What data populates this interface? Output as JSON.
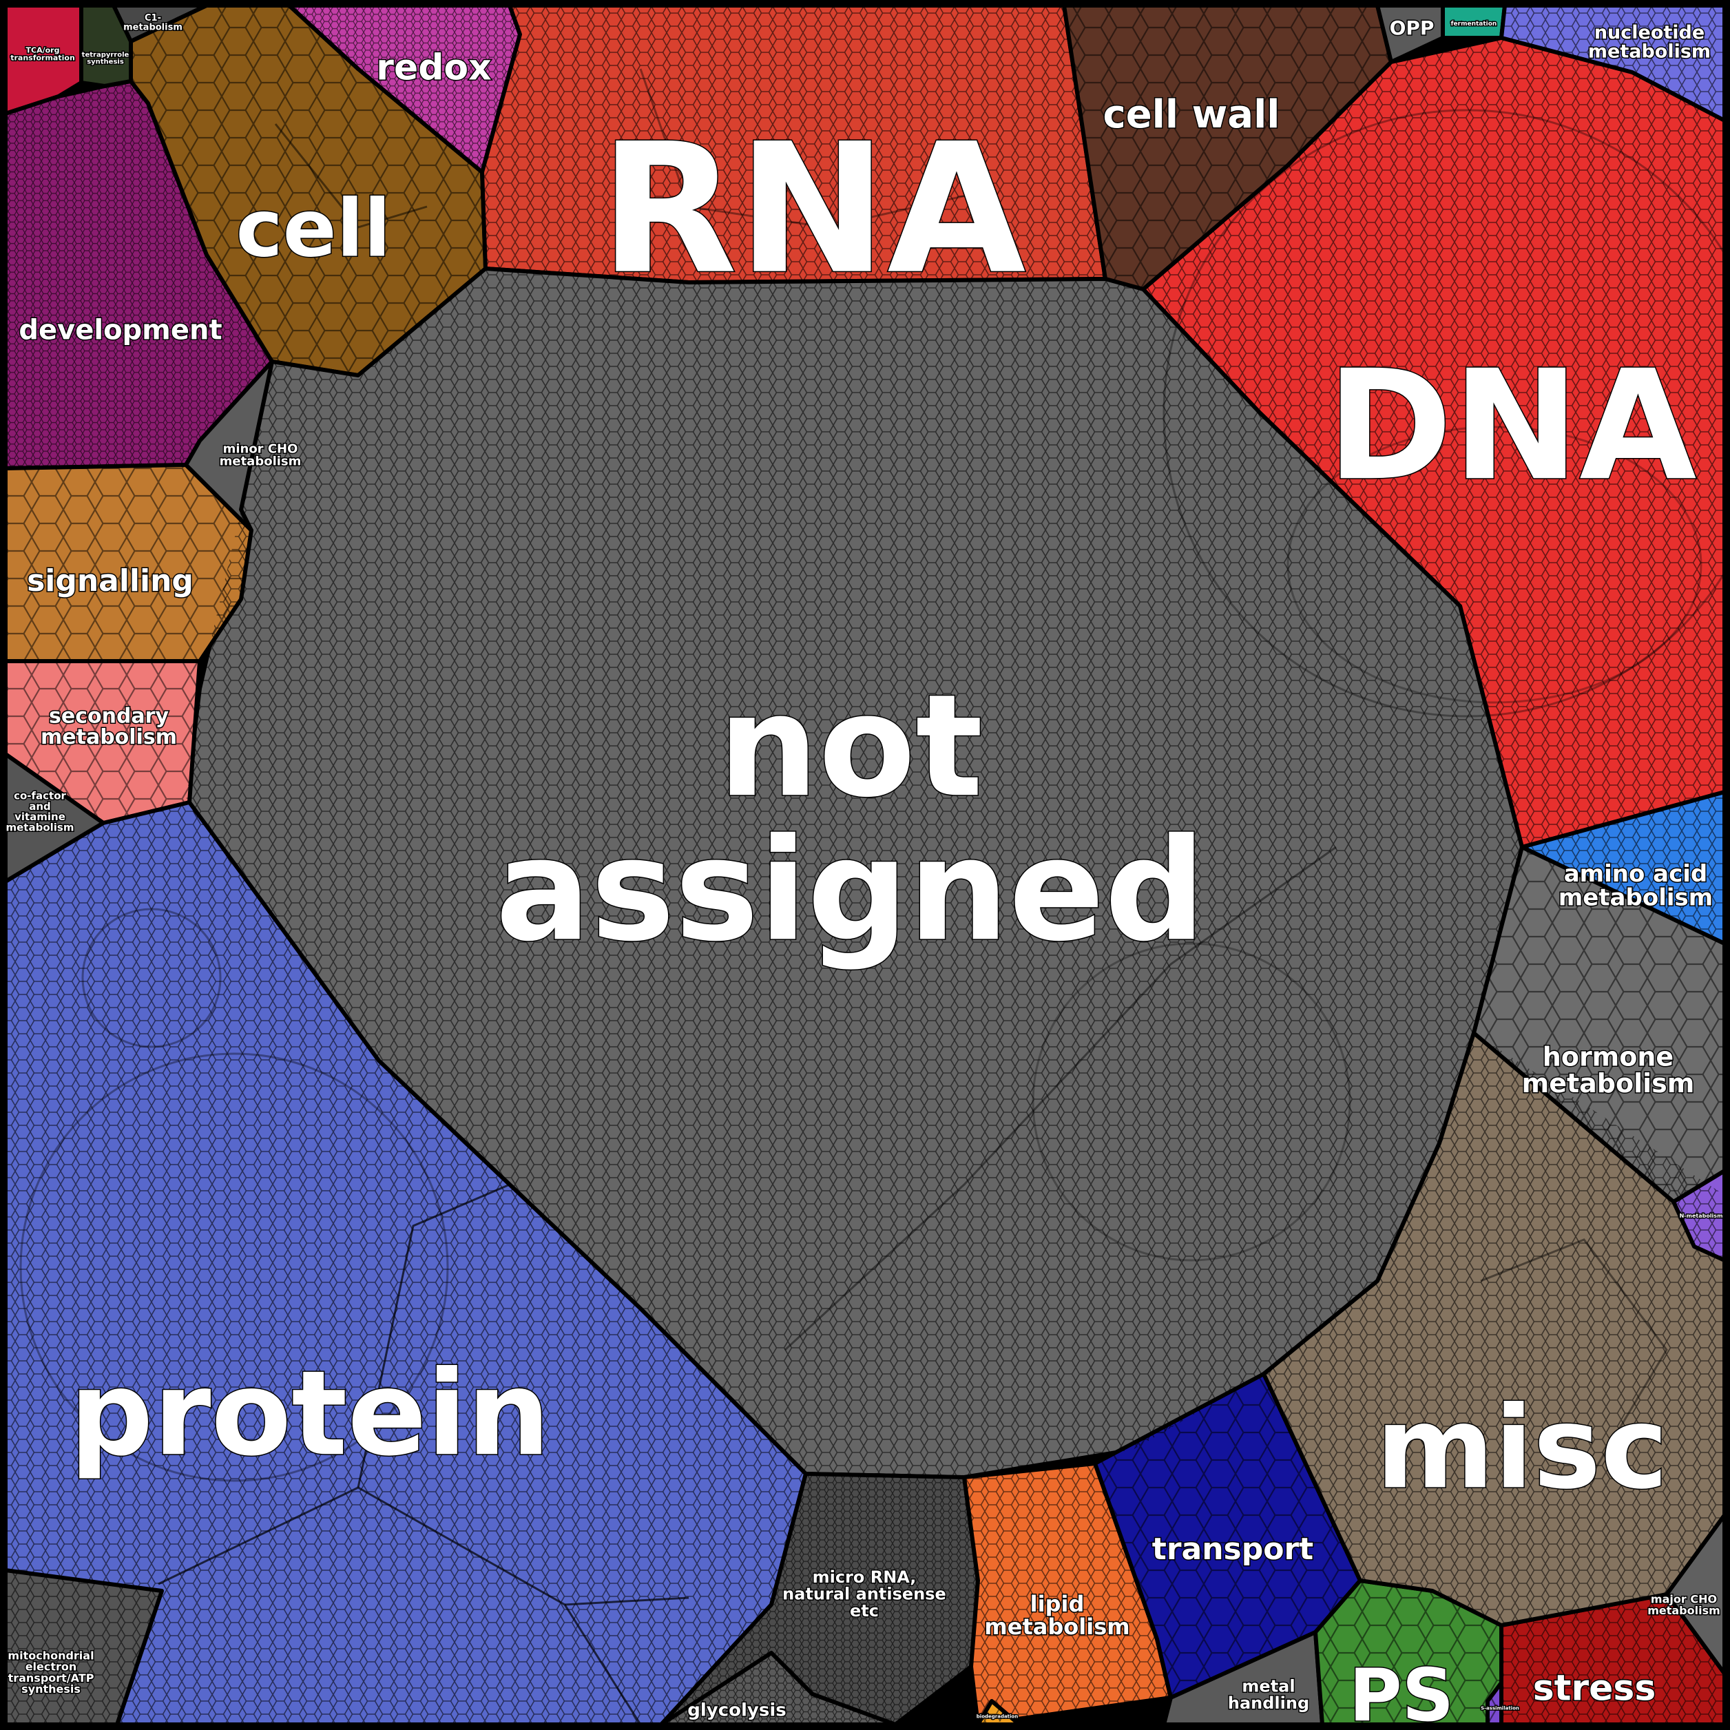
{
  "categories": [
    {
      "id": "not-assigned",
      "lines": [
        "not",
        "assigned"
      ],
      "color": "#666666"
    },
    {
      "id": "rna",
      "lines": [
        "RNA"
      ],
      "color": "#d9412f"
    },
    {
      "id": "dna",
      "lines": [
        "DNA"
      ],
      "color": "#e8302e"
    },
    {
      "id": "protein",
      "lines": [
        "protein"
      ],
      "color": "#5868cc"
    },
    {
      "id": "misc",
      "lines": [
        "misc"
      ],
      "color": "#857460"
    },
    {
      "id": "cell",
      "lines": [
        "cell"
      ],
      "color": "#8a5a17"
    },
    {
      "id": "cell-wall",
      "lines": [
        "cell wall"
      ],
      "color": "#5e3425"
    },
    {
      "id": "development",
      "lines": [
        "development"
      ],
      "color": "#8b1c70"
    },
    {
      "id": "signalling",
      "lines": [
        "signalling"
      ],
      "color": "#c07a30"
    },
    {
      "id": "redox",
      "lines": [
        "redox"
      ],
      "color": "#c23ea6"
    },
    {
      "id": "secondary-metabolism",
      "lines": [
        "secondary",
        "metabolism"
      ],
      "color": "#ef7a78"
    },
    {
      "id": "hormone-metabolism",
      "lines": [
        "hormone",
        "metabolism"
      ],
      "color": "#6d6d6d"
    },
    {
      "id": "amino-acid-metabolism",
      "lines": [
        "amino acid",
        "metabolism"
      ],
      "color": "#2e7fe8"
    },
    {
      "id": "nucleotide-metabolism",
      "lines": [
        "nucleotide",
        "metabolism"
      ],
      "color": "#6f6fe0"
    },
    {
      "id": "transport",
      "lines": [
        "transport"
      ],
      "color": "#13139c"
    },
    {
      "id": "lipid-metabolism",
      "lines": [
        "lipid",
        "metabolism"
      ],
      "color": "#ee6b2c"
    },
    {
      "id": "micro-rna",
      "lines": [
        "micro RNA,",
        "natural antisense",
        "etc"
      ],
      "color": "#4c4c4c"
    },
    {
      "id": "ps",
      "lines": [
        "PS"
      ],
      "color": "#3f8f32"
    },
    {
      "id": "stress",
      "lines": [
        "stress"
      ],
      "color": "#b01414"
    },
    {
      "id": "metal-handling",
      "lines": [
        "metal",
        "handling"
      ],
      "color": "#5a5a5a"
    },
    {
      "id": "glycolysis",
      "lines": [
        "glycolysis"
      ],
      "color": "#5a5a5a"
    },
    {
      "id": "major-cho-metabolism",
      "lines": [
        "major CHO",
        "metabolism"
      ],
      "color": "#606060"
    },
    {
      "id": "minor-cho-metabolism",
      "lines": [
        "minor CHO",
        "metabolism"
      ],
      "color": "#5c5c5c"
    },
    {
      "id": "co-factor-metabolism",
      "lines": [
        "co-factor",
        "and",
        "vitamine",
        "metabolism"
      ],
      "color": "#555555"
    },
    {
      "id": "mitochondrial-electron-transport",
      "lines": [
        "mitochondrial",
        "electron",
        "transport/ATP",
        "synthesis"
      ],
      "color": "#555555"
    },
    {
      "id": "tca-org-transformation",
      "lines": [
        "TCA/org",
        "transformation"
      ],
      "color": "#c8163a"
    },
    {
      "id": "tetrapyrrole-synthesis",
      "lines": [
        "tetrapyrrole",
        "synthesis"
      ],
      "color": "#2c3a22"
    },
    {
      "id": "c1-metabolism",
      "lines": [
        "C1-",
        "metabolism"
      ],
      "color": "#484848"
    },
    {
      "id": "opp",
      "lines": [
        "OPP"
      ],
      "color": "#5a5a5a"
    },
    {
      "id": "fermentation",
      "lines": [
        "fermentation"
      ],
      "color": "#1aa88a"
    },
    {
      "id": "n-metabolism",
      "lines": [
        "N-metabolism"
      ],
      "color": "#8a5ad8"
    },
    {
      "id": "s-assimilation",
      "lines": [
        "S-assimilation"
      ],
      "color": "#7a4ad0"
    },
    {
      "id": "biodegradation",
      "lines": [
        "biodegradation"
      ],
      "color": "#f0a020"
    }
  ]
}
